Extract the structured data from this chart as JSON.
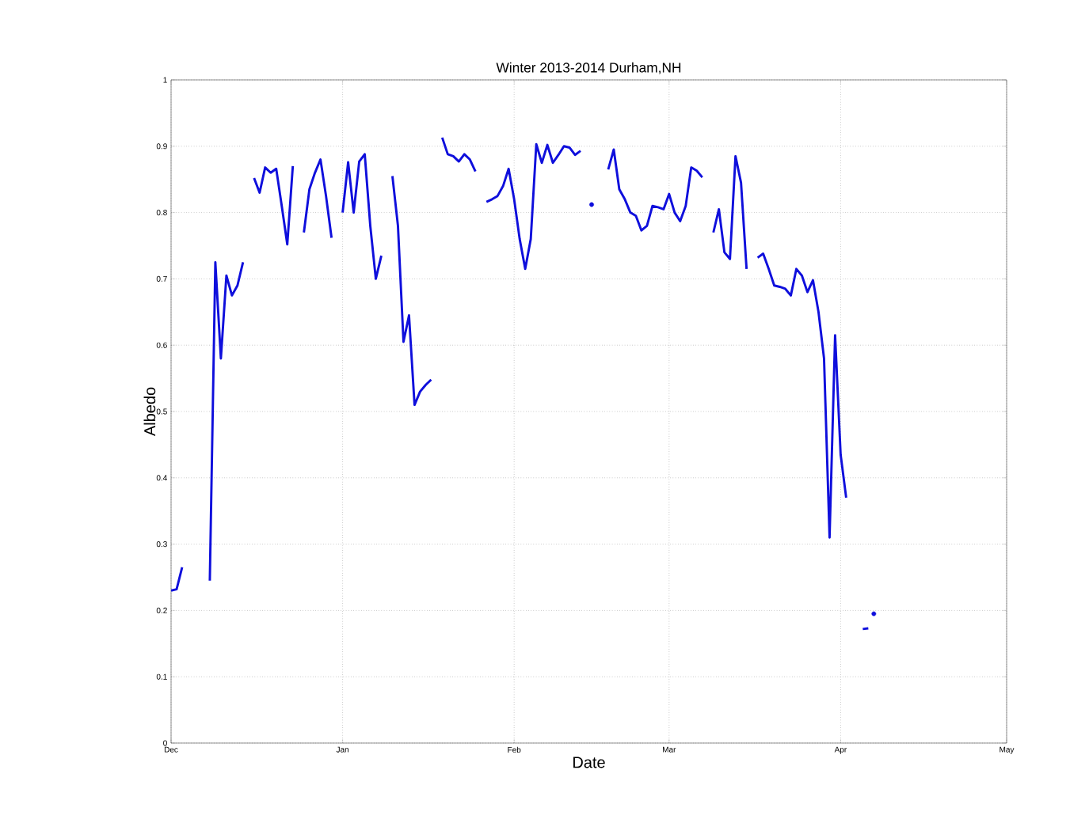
{
  "chart_data": {
    "type": "line",
    "title": "Winter 2013-2014 Durham,NH",
    "xlabel": "Date",
    "ylabel": "Albedo",
    "series": [
      {
        "color": "#0f0fdc",
        "x": [
          "2013-12-01",
          "2013-12-02",
          "2013-12-03",
          "2013-12-04",
          "2013-12-08",
          "2013-12-09",
          "2013-12-10",
          "2013-12-11",
          "2013-12-12",
          "2013-12-13",
          "2013-12-14",
          "2013-12-15",
          "2013-12-16",
          "2013-12-17",
          "2013-12-18",
          "2013-12-19",
          "2013-12-20",
          "2013-12-21",
          "2013-12-22",
          "2013-12-23",
          "2013-12-24",
          "2013-12-25",
          "2013-12-26",
          "2013-12-27",
          "2013-12-28",
          "2013-12-29",
          "2013-12-30",
          "2013-12-31",
          "2014-01-01",
          "2014-01-02",
          "2014-01-03",
          "2014-01-04",
          "2014-01-05",
          "2014-01-06",
          "2014-01-07",
          "2014-01-08",
          "2014-01-09",
          "2014-01-10",
          "2014-01-11",
          "2014-01-12",
          "2014-01-13",
          "2014-01-14",
          "2014-01-15",
          "2014-01-16",
          "2014-01-17",
          "2014-01-18",
          "2014-01-19",
          "2014-01-20",
          "2014-01-21",
          "2014-01-22",
          "2014-01-23",
          "2014-01-24",
          "2014-01-25",
          "2014-01-26",
          "2014-01-27",
          "2014-01-28",
          "2014-01-29",
          "2014-01-30",
          "2014-01-31",
          "2014-02-01",
          "2014-02-02",
          "2014-02-03",
          "2014-02-04",
          "2014-02-05",
          "2014-02-06",
          "2014-02-07",
          "2014-02-08",
          "2014-02-09",
          "2014-02-10",
          "2014-02-11",
          "2014-02-12",
          "2014-02-13",
          "2014-02-14",
          "2014-02-18",
          "2014-02-19",
          "2014-02-20",
          "2014-02-21",
          "2014-02-22",
          "2014-02-23",
          "2014-02-24",
          "2014-02-25",
          "2014-02-26",
          "2014-02-27",
          "2014-02-28",
          "2014-03-01",
          "2014-03-02",
          "2014-03-03",
          "2014-03-04",
          "2014-03-05",
          "2014-03-06",
          "2014-03-07",
          "2014-03-08",
          "2014-03-09",
          "2014-03-10",
          "2014-03-11",
          "2014-03-12",
          "2014-03-13",
          "2014-03-14",
          "2014-03-15",
          "2014-03-16",
          "2014-03-17",
          "2014-03-18",
          "2014-03-19",
          "2014-03-20",
          "2014-03-21",
          "2014-03-22",
          "2014-03-23",
          "2014-03-24",
          "2014-03-25",
          "2014-03-26",
          "2014-03-27",
          "2014-03-28",
          "2014-03-29",
          "2014-03-30",
          "2014-03-31",
          "2014-04-01",
          "2014-04-02",
          "2014-04-03",
          "2014-04-05",
          "2014-04-06"
        ],
        "values": [
          0.23,
          0.232,
          0.265,
          null,
          0.245,
          0.725,
          0.58,
          0.705,
          0.675,
          0.69,
          0.725,
          null,
          0.852,
          0.83,
          0.868,
          0.86,
          0.866,
          0.81,
          0.752,
          0.87,
          null,
          0.77,
          0.835,
          0.86,
          0.88,
          0.825,
          0.762,
          null,
          0.8,
          0.876,
          0.8,
          0.877,
          0.888,
          0.78,
          0.7,
          0.735,
          null,
          0.855,
          0.78,
          0.605,
          0.645,
          0.51,
          0.53,
          0.54,
          0.548,
          null,
          0.913,
          0.888,
          0.885,
          0.877,
          0.888,
          0.88,
          0.862,
          null,
          0.816,
          0.82,
          0.825,
          0.84,
          0.866,
          0.82,
          0.76,
          0.715,
          0.76,
          0.903,
          0.875,
          0.902,
          0.875,
          0.887,
          0.9,
          0.898,
          0.887,
          0.893,
          null,
          0.865,
          0.895,
          0.835,
          0.82,
          0.8,
          0.795,
          0.773,
          0.78,
          0.81,
          0.808,
          0.805,
          0.828,
          0.8,
          0.787,
          0.81,
          0.868,
          0.863,
          0.853,
          null,
          0.77,
          0.805,
          0.74,
          0.73,
          0.885,
          0.845,
          0.715,
          null,
          0.732,
          0.738,
          0.715,
          0.69,
          0.688,
          0.685,
          0.675,
          0.715,
          0.705,
          0.68,
          0.698,
          0.65,
          0.58,
          0.31,
          0.615,
          0.435,
          0.37,
          null,
          0.172,
          0.173
        ]
      },
      {
        "type": "scatter",
        "color": "#0f0fdc",
        "x": [
          "2014-02-15",
          "2014-04-07"
        ],
        "values": [
          0.812,
          0.195
        ]
      }
    ],
    "xlim": [
      "2013-12-01",
      "2014-05-01"
    ],
    "xticks": [
      {
        "value": "2013-12-01",
        "label": "Dec"
      },
      {
        "value": "2014-01-01",
        "label": "Jan"
      },
      {
        "value": "2014-02-01",
        "label": "Feb"
      },
      {
        "value": "2014-03-01",
        "label": "Mar"
      },
      {
        "value": "2014-04-01",
        "label": "Apr"
      },
      {
        "value": "2014-05-01",
        "label": "May"
      }
    ],
    "ylim": [
      0,
      1
    ],
    "yticks": [
      0,
      0.1,
      0.2,
      0.3,
      0.4,
      0.5,
      0.6,
      0.7,
      0.8,
      0.9,
      1
    ],
    "grid": true
  }
}
